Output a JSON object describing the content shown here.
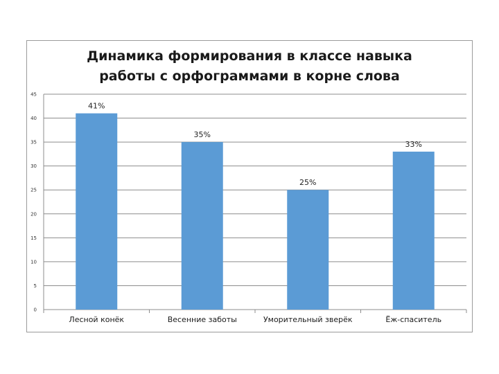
{
  "chart_data": {
    "type": "bar",
    "title": [
      "Динамика формирования в классе навыка",
      "работы с орфограммами в корне слова"
    ],
    "categories": [
      "Лесной конёк",
      "Весенние заботы",
      "Уморительный зверёк",
      "Ёж-спаситель"
    ],
    "values": [
      41,
      35,
      25,
      33
    ],
    "data_labels": [
      "41%",
      "35%",
      "25%",
      "33%"
    ],
    "ylim": [
      0,
      45
    ],
    "yticks": [
      0,
      5,
      10,
      15,
      20,
      25,
      30,
      35,
      40,
      45
    ],
    "grid": true,
    "bar_color": "#5b9bd5",
    "grid_color": "#8c8c8c"
  }
}
